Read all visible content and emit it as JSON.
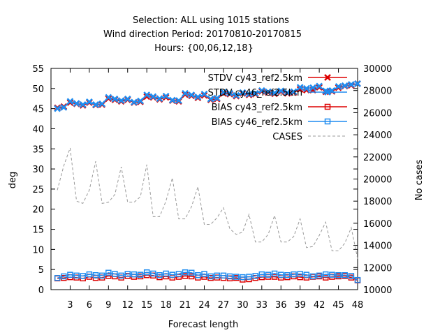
{
  "chart_data": {
    "type": "line",
    "title_lines": [
      "Selection: ALL using  1015 stations",
      "Wind direction   Period: 20170810-20170815",
      "Hours: {00,06,12,18}"
    ],
    "xlabel": "Forecast length",
    "ylabel": "deg",
    "y2label": "No cases",
    "xlim": [
      0,
      48
    ],
    "ylim": [
      0,
      55
    ],
    "y2lim": [
      10000,
      30000
    ],
    "x_ticks": [
      3,
      6,
      9,
      12,
      15,
      18,
      21,
      24,
      27,
      30,
      33,
      36,
      39,
      42,
      45,
      48
    ],
    "y_ticks": [
      0,
      5,
      10,
      15,
      20,
      25,
      30,
      35,
      40,
      45,
      50,
      55
    ],
    "y2_ticks": [
      10000,
      12000,
      14000,
      16000,
      18000,
      20000,
      22000,
      24000,
      26000,
      28000,
      30000
    ],
    "legend_position": "top-right",
    "grid": false,
    "x": [
      1,
      2,
      3,
      4,
      5,
      6,
      7,
      8,
      9,
      10,
      11,
      12,
      13,
      14,
      15,
      16,
      17,
      18,
      19,
      20,
      21,
      22,
      23,
      24,
      25,
      26,
      27,
      28,
      29,
      30,
      31,
      32,
      33,
      34,
      35,
      36,
      37,
      38,
      39,
      40,
      41,
      42,
      43,
      44,
      45,
      46,
      47,
      48
    ],
    "series": [
      {
        "name": "STDV cy43_ref2.5km",
        "color": "#dd0000",
        "marker": "x",
        "style": "solid",
        "axis": "y",
        "values": [
          45.2,
          45.5,
          46.5,
          46.2,
          45.8,
          46.5,
          45.9,
          46.0,
          47.5,
          47.2,
          46.8,
          47.2,
          46.5,
          46.7,
          48.0,
          47.8,
          47.3,
          47.8,
          47.0,
          46.8,
          48.5,
          48.2,
          47.7,
          48.3,
          47.2,
          47.4,
          48.8,
          48.6,
          48.1,
          48.8,
          48.4,
          48.6,
          49.3,
          49.0,
          48.7,
          49.2,
          48.8,
          49.0,
          49.8,
          49.6,
          49.6,
          50.3,
          49.2,
          49.3,
          50.2,
          50.6,
          50.8,
          51.2
        ]
      },
      {
        "name": "STDV cy46_ref2.5km",
        "color": "#1e8cf0",
        "marker": "x",
        "style": "solid",
        "axis": "y",
        "values": [
          45.0,
          45.3,
          46.8,
          46.3,
          46.0,
          46.7,
          46.0,
          46.2,
          47.8,
          47.4,
          47.0,
          47.4,
          46.6,
          46.9,
          48.4,
          48.0,
          47.5,
          48.1,
          47.1,
          47.0,
          48.8,
          48.4,
          47.9,
          48.6,
          47.4,
          47.6,
          49.1,
          48.8,
          48.3,
          49.0,
          48.6,
          48.8,
          49.5,
          49.2,
          48.9,
          49.4,
          49.0,
          49.2,
          50.3,
          50.0,
          50.2,
          50.6,
          49.4,
          49.5,
          50.5,
          50.7,
          51.0,
          51.2
        ]
      },
      {
        "name": "BIAS cy43_ref2.5km",
        "color": "#dd0000",
        "marker": "square",
        "style": "solid",
        "axis": "y",
        "values": [
          2.8,
          2.9,
          3.1,
          3.0,
          2.8,
          3.2,
          2.9,
          3.0,
          3.4,
          3.3,
          3.0,
          3.4,
          3.2,
          3.3,
          3.6,
          3.5,
          3.1,
          3.3,
          3.0,
          3.2,
          3.4,
          3.3,
          3.0,
          3.2,
          2.9,
          3.0,
          2.9,
          2.8,
          2.9,
          2.5,
          2.6,
          2.9,
          3.1,
          3.2,
          3.2,
          3.0,
          3.1,
          3.3,
          3.1,
          3.0,
          3.2,
          3.3,
          3.0,
          3.2,
          3.3,
          3.4,
          3.0,
          2.3
        ]
      },
      {
        "name": "BIAS cy46_ref2.5km",
        "color": "#1e8cf0",
        "marker": "square",
        "style": "solid",
        "axis": "y",
        "values": [
          2.9,
          3.3,
          3.7,
          3.5,
          3.4,
          3.8,
          3.6,
          3.5,
          4.2,
          3.9,
          3.5,
          3.9,
          3.8,
          3.7,
          4.3,
          4.0,
          3.6,
          4.0,
          3.7,
          3.9,
          4.3,
          4.2,
          3.6,
          3.9,
          3.3,
          3.5,
          3.5,
          3.3,
          3.2,
          3.1,
          3.2,
          3.4,
          3.8,
          3.7,
          4.0,
          3.7,
          3.6,
          3.8,
          3.9,
          3.7,
          3.3,
          3.5,
          3.8,
          3.7,
          3.6,
          3.6,
          3.4,
          2.4
        ]
      },
      {
        "name": "CASES",
        "color": "#999999",
        "marker": "none",
        "style": "dashed",
        "axis": "y2",
        "values": [
          19000,
          21200,
          22800,
          18000,
          17800,
          19000,
          21600,
          17800,
          17900,
          18600,
          21100,
          17900,
          17900,
          18400,
          21300,
          16600,
          16600,
          18000,
          20100,
          16400,
          16400,
          17500,
          19300,
          15900,
          15900,
          16500,
          17400,
          15500,
          15000,
          15200,
          16800,
          14300,
          14300,
          15000,
          16700,
          14300,
          14300,
          14800,
          16400,
          13800,
          13900,
          14900,
          16100,
          13500,
          13500,
          14200,
          15600,
          12800
        ]
      }
    ]
  }
}
